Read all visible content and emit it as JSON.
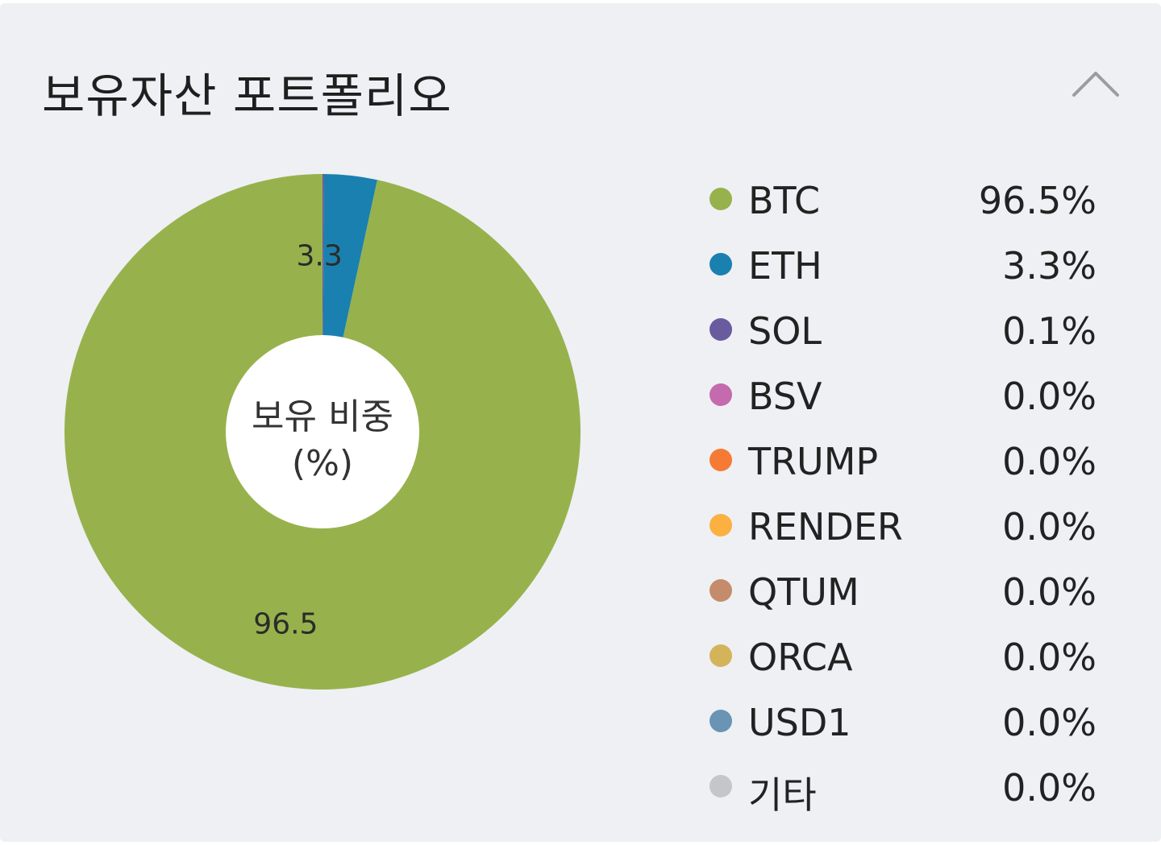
{
  "header": {
    "title": "보유자산 포트폴리오",
    "collapse_icon": "chevron-up-icon"
  },
  "colors": {
    "card_background": "#eef0f4",
    "text": "#222222"
  },
  "chart_data": {
    "type": "pie",
    "donut": true,
    "center_label": [
      "보유 비중",
      "(%)"
    ],
    "slices": [
      {
        "name": "BTC",
        "value": 96.5,
        "label": "96.5%",
        "slice_label": "96.5",
        "color": "#97b24c"
      },
      {
        "name": "ETH",
        "value": 3.3,
        "label": "3.3%",
        "slice_label": "3.3",
        "color": "#1a80b0"
      },
      {
        "name": "SOL",
        "value": 0.1,
        "label": "0.1%",
        "slice_label": "",
        "color": "#6a5a9e"
      },
      {
        "name": "BSV",
        "value": 0.0,
        "label": "0.0%",
        "slice_label": "",
        "color": "#c46aad"
      },
      {
        "name": "TRUMP",
        "value": 0.0,
        "label": "0.0%",
        "slice_label": "",
        "color": "#f57a33"
      },
      {
        "name": "RENDER",
        "value": 0.0,
        "label": "0.0%",
        "slice_label": "",
        "color": "#fbb040"
      },
      {
        "name": "QTUM",
        "value": 0.0,
        "label": "0.0%",
        "slice_label": "",
        "color": "#c48c6a"
      },
      {
        "name": "ORCA",
        "value": 0.0,
        "label": "0.0%",
        "slice_label": "",
        "color": "#d4b45a"
      },
      {
        "name": "USD1",
        "value": 0.0,
        "label": "0.0%",
        "slice_label": "",
        "color": "#6a94b4"
      },
      {
        "name": "기타",
        "value": 0.0,
        "label": "0.0%",
        "slice_label": "",
        "color": "#c4c6ca"
      }
    ],
    "legend_position": "right"
  }
}
